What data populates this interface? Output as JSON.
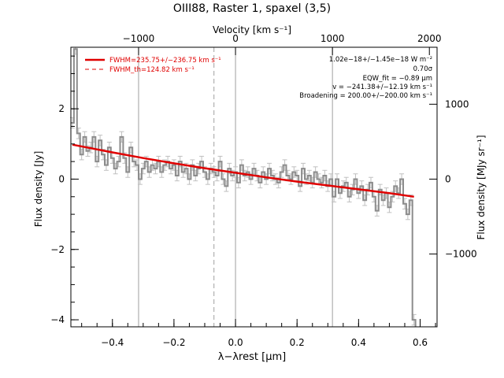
{
  "chart_data": {
    "type": "line",
    "title": "OIII88, Raster 1, spaxel (3,5)",
    "xlabel": "λ−λrest [µm]",
    "ylabel": "Flux density [Jy]",
    "top_axis_label": "Velocity [km s⁻¹]",
    "right_axis_label": "Flux density [MJy sr⁻¹]",
    "xlim": [
      -0.535,
      0.655
    ],
    "ylim": [
      -4.2,
      3.75
    ],
    "x_ticks": [
      -0.4,
      -0.2,
      0.0,
      0.2,
      0.4,
      0.6
    ],
    "x_tick_labels": [
      "−0.4",
      "−0.2",
      "0.0",
      "0.2",
      "0.4",
      "0.6"
    ],
    "y_ticks": [
      -4,
      -2,
      0,
      2
    ],
    "y_tick_labels": [
      "−4",
      "−2",
      "0",
      "2"
    ],
    "top_ticks": [
      -1000,
      0,
      1000,
      2000
    ],
    "top_tick_labels": [
      "−1000",
      "0",
      "1000",
      "2000"
    ],
    "top_tick_positions_um": [
      -0.315,
      0.0,
      0.315,
      0.63
    ],
    "right_ticks": [
      -1000,
      0,
      1000
    ],
    "right_tick_labels": [
      "−1000",
      "0",
      "1000"
    ],
    "right_tick_positions_jy": [
      -2.13,
      0.0,
      2.13
    ],
    "vertical_lines": [
      {
        "x": -0.315,
        "style": "solid"
      },
      {
        "x": 0.0,
        "style": "solid"
      },
      {
        "x": 0.315,
        "style": "solid"
      },
      {
        "x": -0.07,
        "style": "dashed"
      }
    ],
    "grid": false,
    "legend_position": "top-left",
    "series": [
      {
        "name": "",
        "style": "histogram-with-errorbars",
        "color": "#8c8c8c",
        "x": [
          -0.53,
          -0.52,
          -0.51,
          -0.5,
          -0.49,
          -0.48,
          -0.47,
          -0.46,
          -0.45,
          -0.44,
          -0.43,
          -0.42,
          -0.41,
          -0.4,
          -0.39,
          -0.38,
          -0.37,
          -0.36,
          -0.35,
          -0.34,
          -0.33,
          -0.32,
          -0.31,
          -0.3,
          -0.29,
          -0.28,
          -0.27,
          -0.26,
          -0.25,
          -0.24,
          -0.23,
          -0.22,
          -0.21,
          -0.2,
          -0.19,
          -0.18,
          -0.17,
          -0.16,
          -0.15,
          -0.14,
          -0.13,
          -0.12,
          -0.11,
          -0.1,
          -0.09,
          -0.08,
          -0.07,
          -0.06,
          -0.05,
          -0.04,
          -0.03,
          -0.02,
          -0.01,
          0.0,
          0.01,
          0.02,
          0.03,
          0.04,
          0.05,
          0.06,
          0.07,
          0.08,
          0.09,
          0.1,
          0.11,
          0.12,
          0.13,
          0.14,
          0.15,
          0.16,
          0.17,
          0.18,
          0.19,
          0.2,
          0.21,
          0.22,
          0.23,
          0.24,
          0.25,
          0.26,
          0.27,
          0.28,
          0.29,
          0.3,
          0.31,
          0.32,
          0.33,
          0.34,
          0.35,
          0.36,
          0.37,
          0.38,
          0.39,
          0.4,
          0.41,
          0.42,
          0.43,
          0.44,
          0.45,
          0.46,
          0.47,
          0.48,
          0.49,
          0.5,
          0.51,
          0.52,
          0.53,
          0.54,
          0.55,
          0.56,
          0.57,
          0.58
        ],
        "y": [
          1.6,
          3.7,
          1.3,
          0.7,
          1.2,
          0.8,
          0.9,
          1.2,
          0.5,
          1.1,
          0.7,
          0.4,
          0.9,
          0.6,
          0.3,
          0.5,
          1.2,
          0.6,
          0.2,
          0.9,
          0.5,
          0.4,
          0.0,
          0.3,
          0.5,
          0.2,
          0.4,
          0.3,
          0.5,
          0.2,
          0.4,
          0.5,
          0.3,
          0.4,
          0.1,
          0.5,
          0.2,
          0.3,
          0.0,
          0.4,
          0.1,
          0.3,
          0.5,
          0.2,
          0.0,
          0.3,
          0.2,
          0.1,
          0.5,
          0.0,
          -0.2,
          0.3,
          0.1,
          0.2,
          -0.1,
          0.4,
          0.1,
          0.2,
          0.0,
          0.3,
          0.1,
          -0.1,
          0.2,
          0.0,
          0.3,
          0.1,
          0.0,
          -0.1,
          0.2,
          0.4,
          0.1,
          0.0,
          0.2,
          0.1,
          -0.2,
          0.3,
          0.0,
          0.1,
          -0.1,
          0.2,
          0.0,
          -0.1,
          0.1,
          -0.2,
          0.0,
          -0.5,
          0.0,
          -0.4,
          -0.2,
          -0.1,
          -0.5,
          -0.3,
          0.0,
          -0.4,
          -0.2,
          -0.6,
          -0.3,
          -0.1,
          -0.5,
          -0.9,
          -0.3,
          -0.6,
          -0.4,
          -0.8,
          -0.5,
          -0.2,
          -0.4,
          0.0,
          -0.7,
          -1.0,
          -0.6,
          -4.0
        ],
        "error": 0.15
      },
      {
        "name": "FWHM=235.75+/−236.75 km s⁻¹",
        "style": "fit",
        "color": "#e00000",
        "x": [
          -0.53,
          -0.4,
          -0.3,
          -0.2,
          -0.1,
          0.0,
          0.1,
          0.2,
          0.3,
          0.4,
          0.5,
          0.58
        ],
        "y": [
          0.98,
          0.76,
          0.6,
          0.45,
          0.31,
          0.18,
          0.05,
          -0.07,
          -0.18,
          -0.29,
          -0.4,
          -0.5
        ]
      },
      {
        "name": "FWHM_th=124.82 km s⁻¹",
        "style": "dashed",
        "color": "#e00000",
        "x": [],
        "y": []
      }
    ],
    "annotations": [
      "1.02e−18+/−1.45e−18 W m⁻²",
      "0.70σ",
      "EQW_fit = −0.89 µm",
      "v = −241.38+/−12.19 km s⁻¹",
      "Broadening = 200.00+/−200.00 km s⁻¹"
    ]
  }
}
